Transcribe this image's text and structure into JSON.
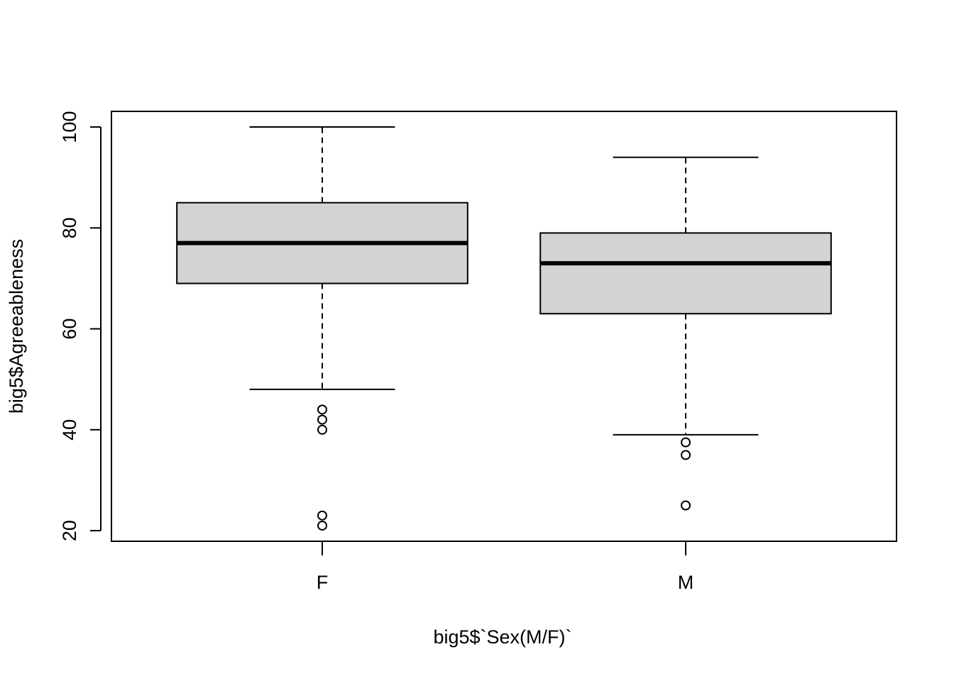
{
  "chart_data": {
    "type": "box",
    "xlabel": "big5$`Sex(M/F)`",
    "ylabel": "big5$Agreeableness",
    "categories": [
      "F",
      "M"
    ],
    "boxes": [
      {
        "min": 48,
        "q1": 69,
        "median": 77,
        "q3": 85,
        "max": 100,
        "outliers": [
          44,
          42,
          40,
          23,
          21
        ]
      },
      {
        "min": 39,
        "q1": 63,
        "median": 73,
        "q3": 79,
        "max": 94,
        "outliers": [
          37.5,
          35,
          25
        ]
      }
    ],
    "color": "#d3d3d3",
    "ylim": [
      17.9,
      103.1
    ],
    "yticks": [
      20,
      40,
      60,
      80,
      100
    ]
  }
}
